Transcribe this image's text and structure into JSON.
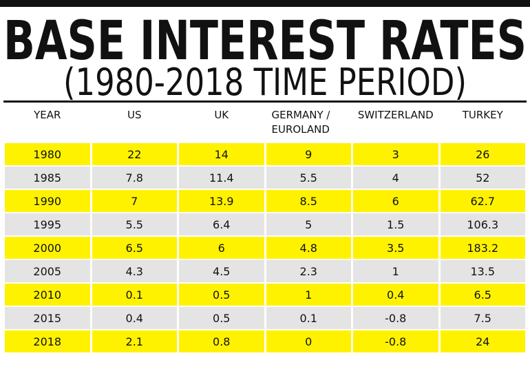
{
  "header": {
    "title": "BASE INTEREST RATES",
    "subtitle": "(1980-2018 TIME PERIOD)"
  },
  "table": {
    "columns": [
      "YEAR",
      "US",
      "UK",
      "GERMANY / EUROLAND",
      "SWITZERLAND",
      "TURKEY"
    ],
    "rows": [
      [
        "1980",
        "22",
        "14",
        "9",
        "3",
        "26"
      ],
      [
        "1985",
        "7.8",
        "11.4",
        "5.5",
        "4",
        "52"
      ],
      [
        "1990",
        "7",
        "13.9",
        "8.5",
        "6",
        "62.7"
      ],
      [
        "1995",
        "5.5",
        "6.4",
        "5",
        "1.5",
        "106.3"
      ],
      [
        "2000",
        "6.5",
        "6",
        "4.8",
        "3.5",
        "183.2"
      ],
      [
        "2005",
        "4.3",
        "4.5",
        "2.3",
        "1",
        "13.5"
      ],
      [
        "2010",
        "0.1",
        "0.5",
        "1",
        "0.4",
        "6.5"
      ],
      [
        "2015",
        "0.4",
        "0.5",
        "0.1",
        "-0.8",
        "7.5"
      ],
      [
        "2018",
        "2.1",
        "0.8",
        "0",
        "-0.8",
        "24"
      ]
    ]
  }
}
